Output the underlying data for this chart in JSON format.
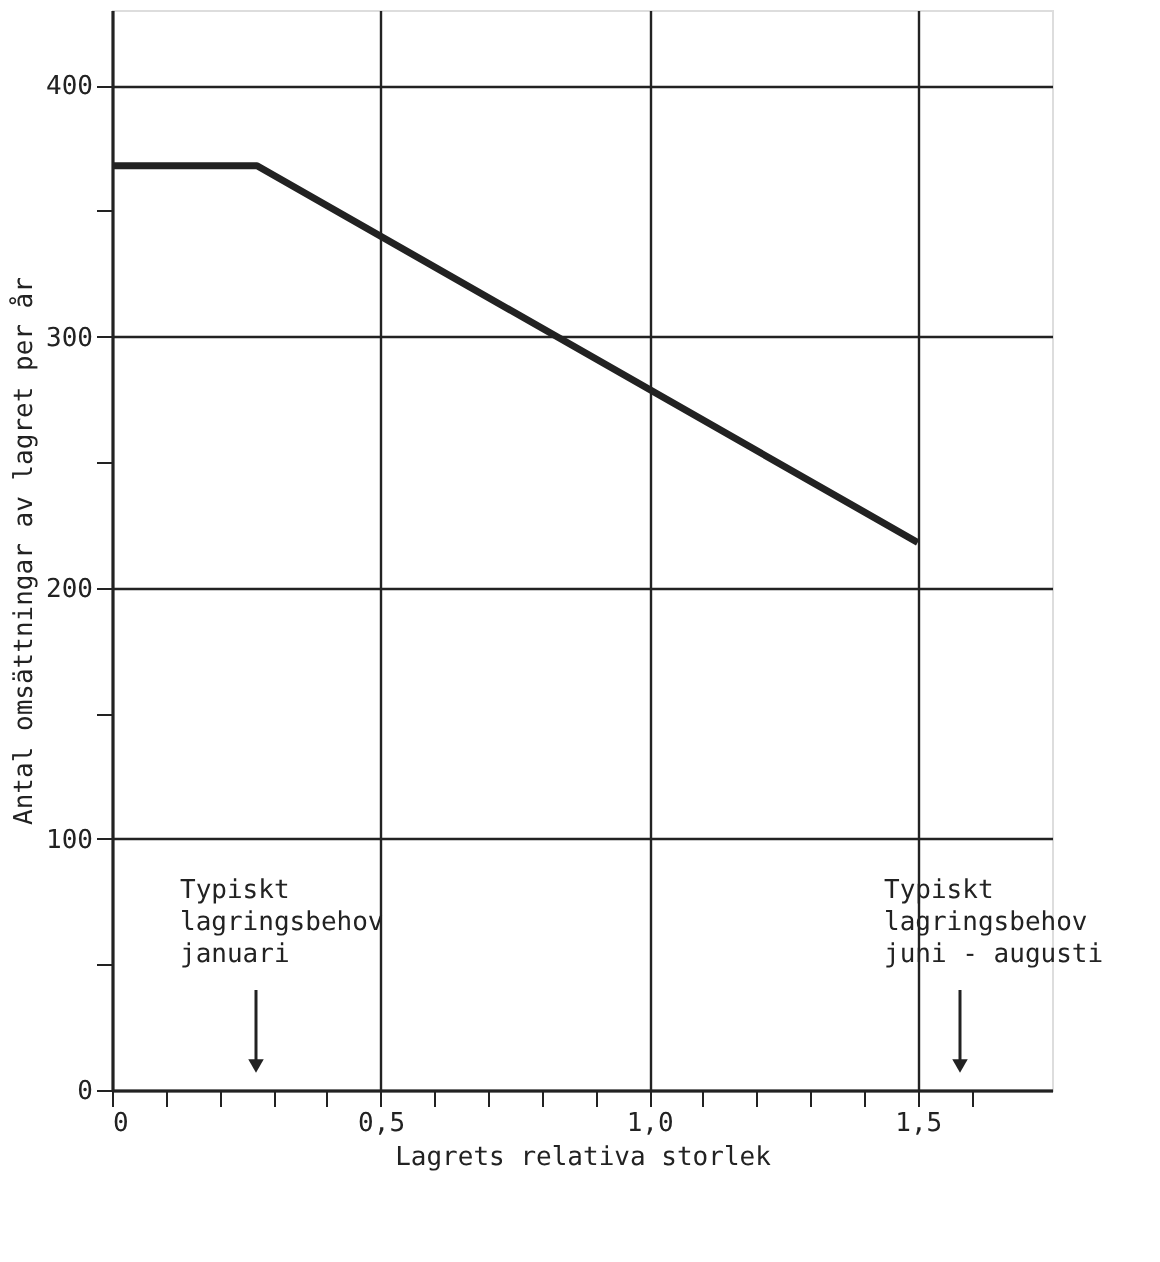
{
  "chart_data": {
    "type": "line",
    "xlabel": "Lagrets relativa storlek",
    "ylabel": "Antal omsättningar av lagret per år",
    "x": [
      0,
      0.27,
      1.5
    ],
    "values": [
      368,
      368,
      218
    ],
    "color": "#222222",
    "grid": true,
    "xlim": [
      0,
      1.75
    ],
    "ylim": [
      0,
      430
    ],
    "xticks": [
      {
        "value": 0,
        "label": "0"
      },
      {
        "value": 0.1,
        "label": null
      },
      {
        "value": 0.2,
        "label": null
      },
      {
        "value": 0.3,
        "label": null
      },
      {
        "value": 0.4,
        "label": null
      },
      {
        "value": 0.5,
        "label": "0,5"
      },
      {
        "value": 0.6,
        "label": null
      },
      {
        "value": 0.7,
        "label": null
      },
      {
        "value": 0.8,
        "label": null
      },
      {
        "value": 0.9,
        "label": null
      },
      {
        "value": 1.0,
        "label": "1,0"
      },
      {
        "value": 1.1,
        "label": null
      },
      {
        "value": 1.2,
        "label": null
      },
      {
        "value": 1.3,
        "label": null
      },
      {
        "value": 1.4,
        "label": null
      },
      {
        "value": 1.5,
        "label": "1,5"
      },
      {
        "value": 1.6,
        "label": null
      }
    ],
    "yticks": [
      0,
      {
        "value": 50,
        "label": null
      },
      100,
      {
        "value": 150,
        "label": null
      },
      200,
      {
        "value": 250,
        "label": null
      },
      300,
      {
        "value": 350,
        "label": null
      },
      400
    ],
    "annotations": [
      "Typiskt\nlagringsbehov\njanuari",
      "Typiskt\nlagringsbehov\njuni - augusti"
    ]
  }
}
